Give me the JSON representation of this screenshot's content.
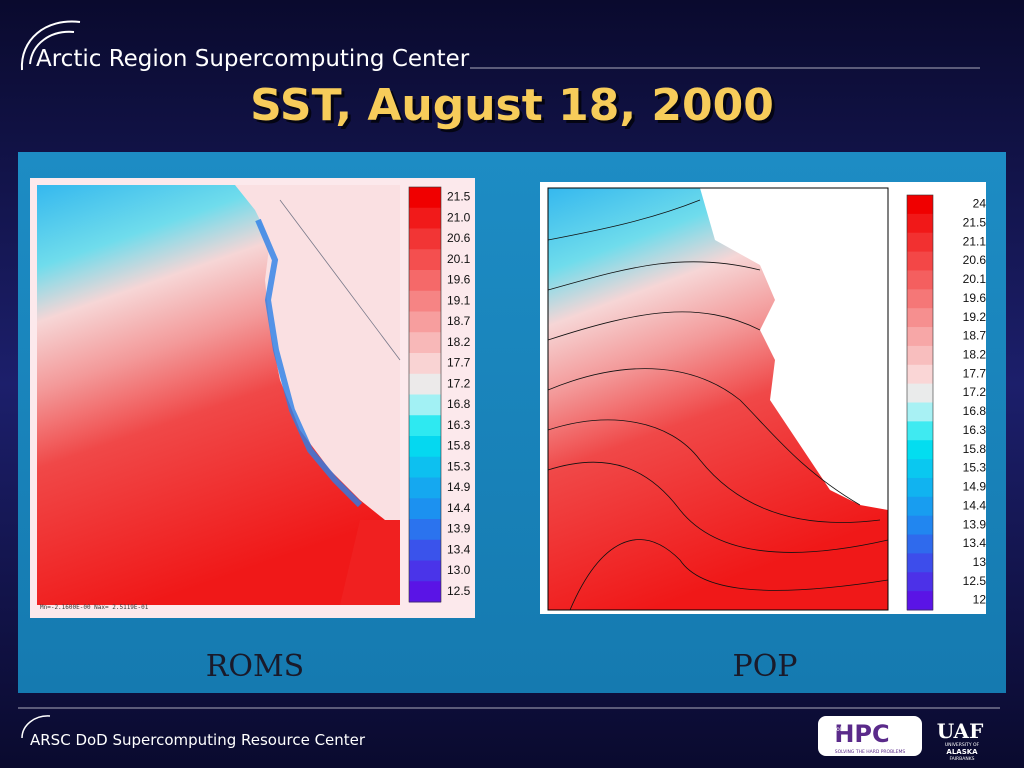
{
  "header": {
    "organization": "Arctic Region Supercomputing Center",
    "title": "SST, August 18, 2000"
  },
  "panels": [
    {
      "label": "ROMS",
      "minmax": "Mn=-2.1600E-00   Nax= 2.5119E-01",
      "scale": [
        "21.5",
        "21.0",
        "20.6",
        "20.1",
        "19.6",
        "19.1",
        "18.7",
        "18.2",
        "17.7",
        "17.2",
        "16.8",
        "16.3",
        "15.8",
        "15.3",
        "14.9",
        "14.4",
        "13.9",
        "13.4",
        "13.0",
        "12.5"
      ]
    },
    {
      "label": "POP",
      "scale": [
        "24",
        "21.5",
        "21.1",
        "20.6",
        "20.1",
        "19.6",
        "19.2",
        "18.7",
        "18.2",
        "17.7",
        "17.2",
        "16.8",
        "16.3",
        "15.8",
        "15.3",
        "14.9",
        "14.4",
        "13.9",
        "13.4",
        "13",
        "12.5",
        "12"
      ]
    }
  ],
  "footer": {
    "text": "ARSC DoD Supercomputing Resource Center",
    "hpc_logo": {
      "mark": "HPC",
      "small": "DoD",
      "tagline": "SOLVING THE HARD PROBLEMS"
    },
    "uaf_logo": {
      "mark": "UAF",
      "line1": "UNIVERSITY OF",
      "line2": "ALASKA",
      "line3": "FAIRBANKS"
    }
  }
}
